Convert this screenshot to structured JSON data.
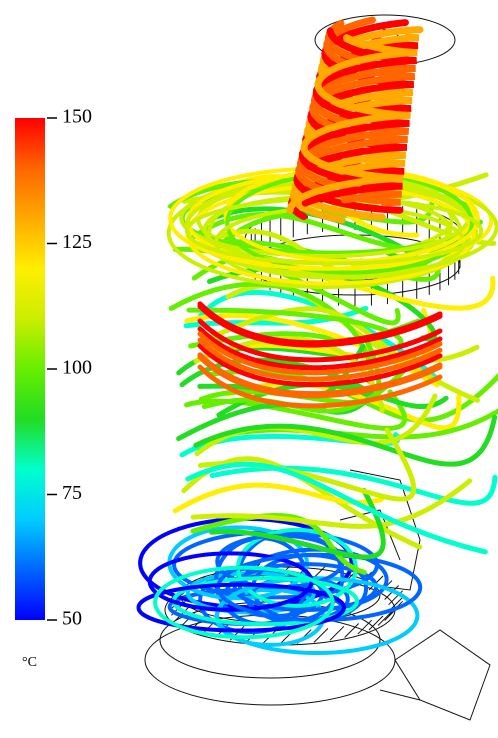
{
  "colorbar": {
    "range": [
      50,
      150
    ],
    "ticks": [
      50,
      75,
      100,
      125,
      150
    ],
    "unit": "°C",
    "colors": [
      "#0000ff",
      "#0066ff",
      "#00ccff",
      "#00ffcc",
      "#22dd22",
      "#66ee00",
      "#ccee00",
      "#ffee00",
      "#ffaa00",
      "#ff6600",
      "#ff0000"
    ]
  }
}
